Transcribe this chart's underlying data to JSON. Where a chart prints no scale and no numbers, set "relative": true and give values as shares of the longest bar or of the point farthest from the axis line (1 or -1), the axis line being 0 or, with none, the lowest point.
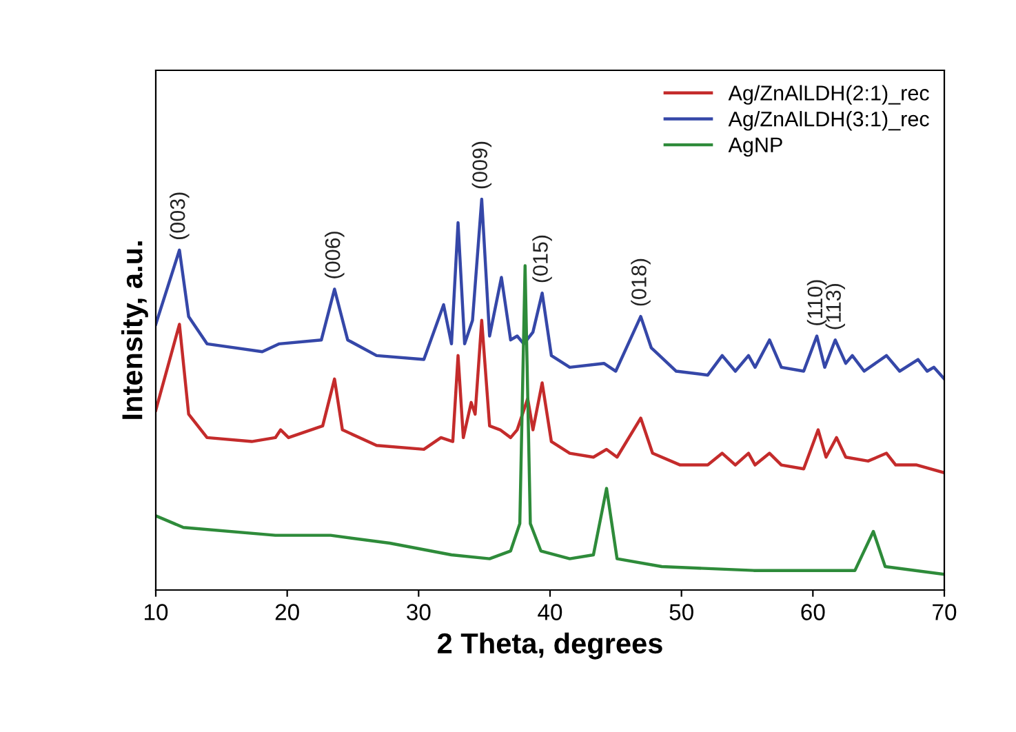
{
  "chart_data": {
    "type": "line",
    "relative": true,
    "xlabel": "2 Theta, degrees",
    "ylabel": "Intensity, a.u.",
    "xlim": [
      10,
      70
    ],
    "xticks": [
      10,
      20,
      30,
      40,
      50,
      60,
      70
    ],
    "legend": "top right",
    "grid": false,
    "series": [
      {
        "name": "Ag/ZnAlLDH(2:1)_rec",
        "color": "#c42b2b",
        "x": [
          10,
          11.8,
          12.5,
          13.9,
          17.3,
          19.1,
          19.5,
          20.1,
          22.7,
          23.6,
          24.2,
          26.8,
          30.4,
          31.7,
          32.6,
          33.0,
          33.4,
          34.0,
          34.3,
          34.8,
          35.4,
          36.2,
          37.0,
          37.5,
          38.3,
          38.7,
          39.4,
          40.1,
          41.5,
          43.3,
          44.3,
          45.1,
          46.9,
          47.8,
          49.9,
          52.0,
          53.1,
          54.1,
          55.1,
          55.6,
          56.7,
          57.6,
          59.3,
          60.4,
          61.0,
          61.8,
          62.5,
          64.2,
          65.6,
          66.3,
          67.9,
          70.0
        ],
        "values": [
          0.46,
          0.68,
          0.45,
          0.39,
          0.38,
          0.39,
          0.41,
          0.39,
          0.42,
          0.54,
          0.41,
          0.37,
          0.36,
          0.39,
          0.38,
          0.6,
          0.39,
          0.48,
          0.45,
          0.69,
          0.42,
          0.41,
          0.39,
          0.41,
          0.49,
          0.41,
          0.53,
          0.38,
          0.35,
          0.34,
          0.36,
          0.34,
          0.44,
          0.35,
          0.32,
          0.32,
          0.35,
          0.32,
          0.35,
          0.32,
          0.35,
          0.32,
          0.31,
          0.41,
          0.34,
          0.39,
          0.34,
          0.33,
          0.35,
          0.32,
          0.32,
          0.3
        ]
      },
      {
        "name": "Ag/ZnAlLDH(3:1)_rec",
        "color": "#3547a8",
        "x": [
          10,
          11.8,
          12.5,
          13.9,
          18.1,
          19.4,
          22.6,
          23.6,
          24.6,
          26.8,
          30.4,
          31.9,
          32.5,
          33.0,
          33.5,
          34.1,
          34.8,
          35.4,
          36.3,
          37.0,
          37.5,
          38.0,
          38.7,
          39.4,
          40.1,
          41.5,
          44.1,
          45.0,
          46.9,
          47.7,
          49.6,
          52.0,
          53.1,
          54.1,
          55.1,
          55.6,
          56.7,
          57.6,
          59.3,
          60.3,
          60.9,
          61.7,
          62.5,
          63.0,
          63.9,
          65.6,
          66.6,
          68.0,
          68.7,
          69.2,
          70.0
        ],
        "values": [
          0.68,
          0.87,
          0.7,
          0.63,
          0.61,
          0.63,
          0.64,
          0.77,
          0.64,
          0.6,
          0.59,
          0.73,
          0.63,
          0.94,
          0.63,
          0.69,
          1.0,
          0.65,
          0.8,
          0.64,
          0.65,
          0.63,
          0.66,
          0.76,
          0.6,
          0.57,
          0.58,
          0.56,
          0.7,
          0.62,
          0.56,
          0.55,
          0.6,
          0.56,
          0.6,
          0.57,
          0.64,
          0.57,
          0.56,
          0.65,
          0.57,
          0.64,
          0.58,
          0.6,
          0.56,
          0.6,
          0.56,
          0.59,
          0.56,
          0.57,
          0.54
        ]
      },
      {
        "name": "AgNP",
        "color": "#2e8b3a",
        "x": [
          10,
          12.1,
          19.1,
          23.3,
          27.8,
          32.5,
          35.4,
          37.0,
          37.7,
          38.1,
          38.5,
          39.3,
          41.5,
          43.3,
          44.3,
          45.1,
          48.5,
          55.5,
          63.2,
          64.6,
          65.5,
          70.0
        ],
        "values": [
          0.19,
          0.16,
          0.14,
          0.14,
          0.12,
          0.09,
          0.08,
          0.1,
          0.17,
          0.83,
          0.17,
          0.1,
          0.08,
          0.09,
          0.26,
          0.08,
          0.06,
          0.05,
          0.05,
          0.15,
          0.06,
          0.04
        ]
      }
    ],
    "annotations": [
      {
        "text": "(003)",
        "x": 11.8,
        "y": 0.87
      },
      {
        "text": "(006)",
        "x": 23.6,
        "y": 0.77
      },
      {
        "text": "(009)",
        "x": 34.8,
        "y": 1.0
      },
      {
        "text": "(015)",
        "x": 39.4,
        "y": 0.76
      },
      {
        "text": "(018)",
        "x": 46.9,
        "y": 0.7
      },
      {
        "text": "(110)",
        "x": 60.3,
        "y": 0.65
      },
      {
        "text": "(113)",
        "x": 61.7,
        "y": 0.64
      }
    ]
  }
}
